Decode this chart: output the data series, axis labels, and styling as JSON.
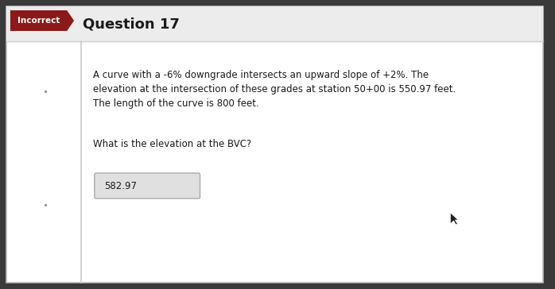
{
  "title": "Question 17",
  "incorrect_label": "Incorrect",
  "body_line1": "A curve with a -6% downgrade intersects an upward slope of +2%. The",
  "body_line2": "elevation at the intersection of these grades at station 50+00 is 550.97 feet.",
  "body_line3": "The length of the curve is 800 feet.",
  "question": "What is the elevation at the BVC?",
  "answer": "582.97",
  "bg_outer": "#3a3a3a",
  "bg_card": "#ffffff",
  "bg_header": "#ececec",
  "incorrect_bg": "#8b1a1a",
  "incorrect_text": "#ffffff",
  "title_color": "#1a1a1a",
  "body_color": "#1a1a1a",
  "answer_box_bg": "#e0e0e0",
  "answer_box_border": "#aaaaaa",
  "border_color": "#bbbbbb",
  "separator_color": "#cccccc",
  "left_line_color": "#cccccc"
}
